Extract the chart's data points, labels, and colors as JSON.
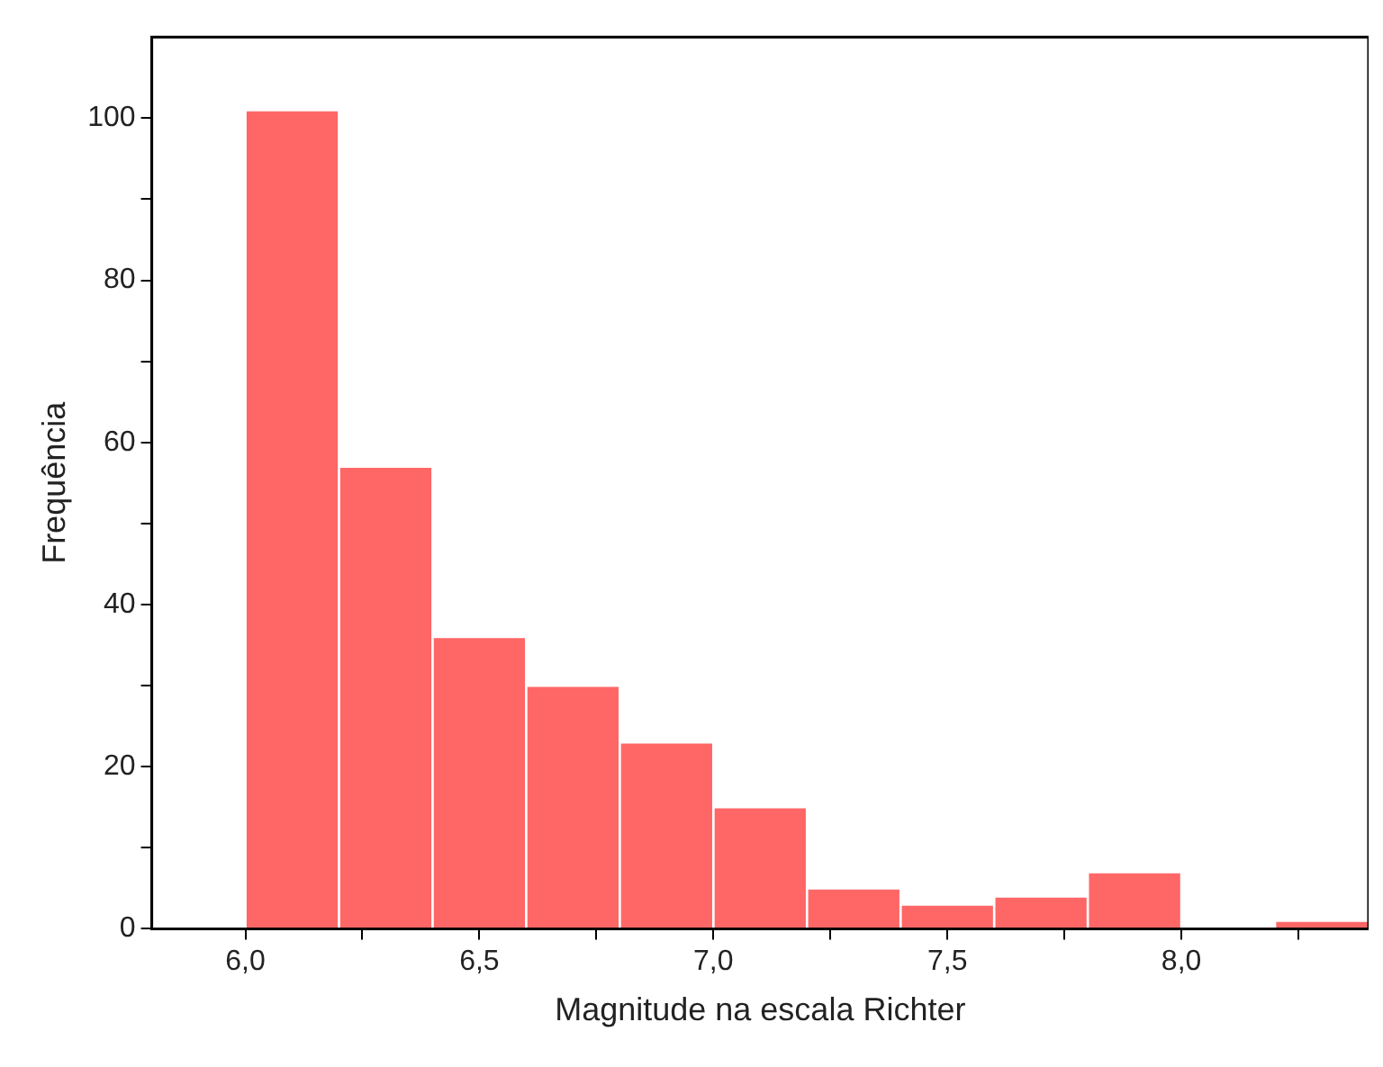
{
  "chart_data": {
    "type": "histogram",
    "xlabel": "Magnitude na escala Richter",
    "ylabel": "Frequência",
    "bins": [
      6.0,
      6.2,
      6.4,
      6.6,
      6.8,
      7.0,
      7.2,
      7.4,
      7.6,
      7.8,
      8.0,
      8.2,
      8.4
    ],
    "values": [
      101,
      57,
      36,
      30,
      23,
      15,
      5,
      3,
      4,
      7,
      0,
      1
    ],
    "color": "#ff6666",
    "xlim": [
      5.8,
      8.4
    ],
    "xticks": [
      {
        "value": 6.0,
        "label": "6,0"
      },
      {
        "value": 6.25,
        "label": null
      },
      {
        "value": 6.5,
        "label": "6,5"
      },
      {
        "value": 6.75,
        "label": null
      },
      {
        "value": 7.0,
        "label": "7,0"
      },
      {
        "value": 7.25,
        "label": null
      },
      {
        "value": 7.5,
        "label": "7,5"
      },
      {
        "value": 7.75,
        "label": null
      },
      {
        "value": 8.0,
        "label": "8,0"
      },
      {
        "value": 8.25,
        "label": null
      }
    ],
    "ylim": [
      0,
      110
    ],
    "yticks": [
      0,
      {
        "value": 10,
        "label": null
      },
      20,
      {
        "value": 30,
        "label": null
      },
      40,
      {
        "value": 50,
        "label": null
      },
      60,
      {
        "value": 70,
        "label": null
      },
      80,
      {
        "value": 90,
        "label": null
      },
      100
    ],
    "grid": false,
    "legend": false
  }
}
